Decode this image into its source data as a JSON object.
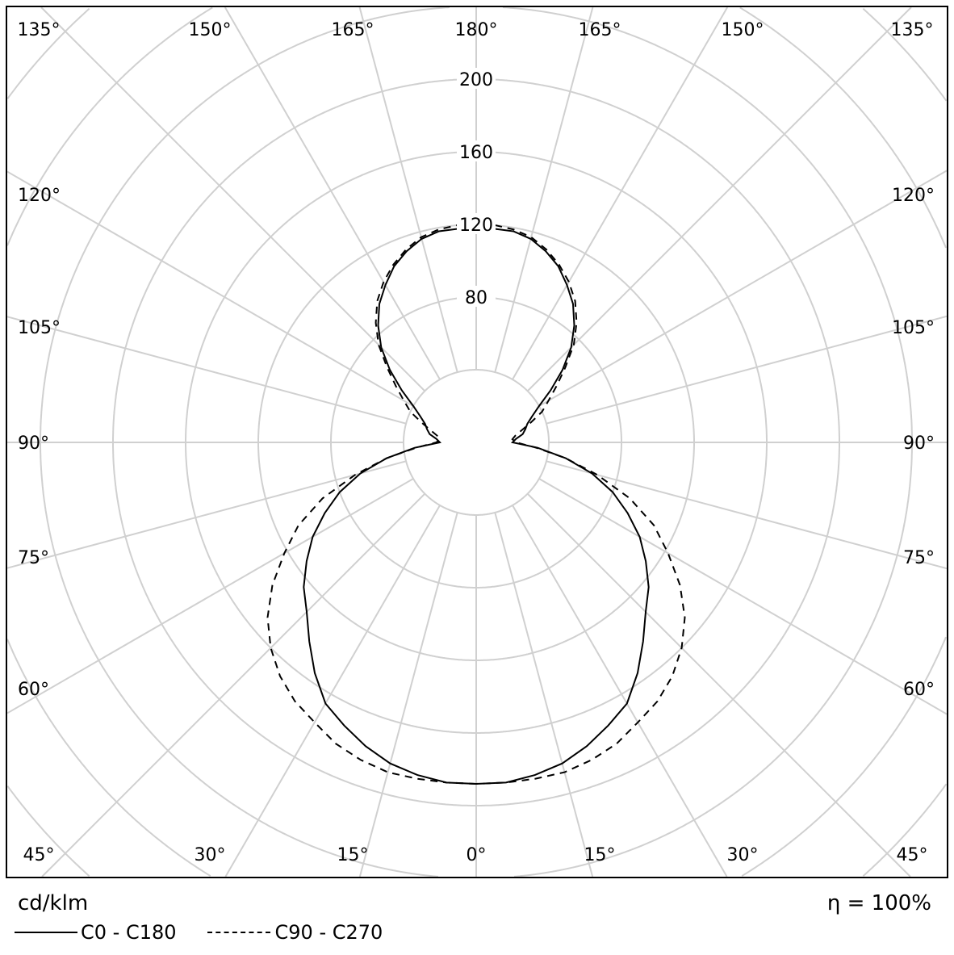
{
  "chart_data": {
    "type": "polar-line",
    "unit_label": "cd/klm",
    "efficiency_label": "η = 100%",
    "radial_ticks": [
      80,
      120,
      160,
      200
    ],
    "radial_grid_step": 40,
    "angle_grid_step_deg": 15,
    "grid": true,
    "legend_placement": "bottom-left",
    "angle_labels": {
      "top": [
        "135°",
        "150°",
        "165°",
        "180°",
        "165°",
        "150°",
        "135°"
      ],
      "left": [
        "120°",
        "105°",
        "90°",
        "75°",
        "60°"
      ],
      "right": [
        "120°",
        "105°",
        "90°",
        "75°",
        "60°"
      ],
      "bottom": [
        "45°",
        "30°",
        "15°",
        "0°",
        "15°",
        "30°",
        "45°"
      ]
    },
    "angles_deg": [
      0,
      5,
      10,
      15,
      20,
      25,
      30,
      35,
      40,
      45,
      50,
      55,
      60,
      65,
      70,
      75,
      80,
      85,
      90,
      95,
      100,
      105,
      110,
      115,
      120,
      125,
      130,
      135,
      140,
      145,
      150,
      155,
      160,
      165,
      170,
      175,
      180
    ],
    "series": [
      {
        "name": "C0 - C180",
        "style": "solid",
        "color": "#000000",
        "values": [
          188,
          188,
          186,
          183,
          178,
          172,
          166,
          155,
          143,
          132,
          124,
          114,
          104,
          92,
          80,
          66,
          50,
          34,
          20,
          22,
          26,
          28,
          30,
          34,
          40,
          50,
          62,
          74,
          84,
          93,
          100,
          107,
          112,
          116,
          118,
          118,
          118
        ]
      },
      {
        "name": "C90 - C270",
        "style": "dashed",
        "color": "#000000",
        "values": [
          188,
          188,
          188,
          188,
          186,
          183,
          178,
          174,
          168,
          160,
          150,
          137,
          122,
          108,
          90,
          69,
          50,
          33,
          22,
          20,
          22,
          26,
          32,
          40,
          46,
          54,
          64,
          76,
          86,
          95,
          102,
          108,
          113,
          117,
          119,
          120,
          120
        ]
      }
    ],
    "grid_color": "#d0d0d0"
  }
}
